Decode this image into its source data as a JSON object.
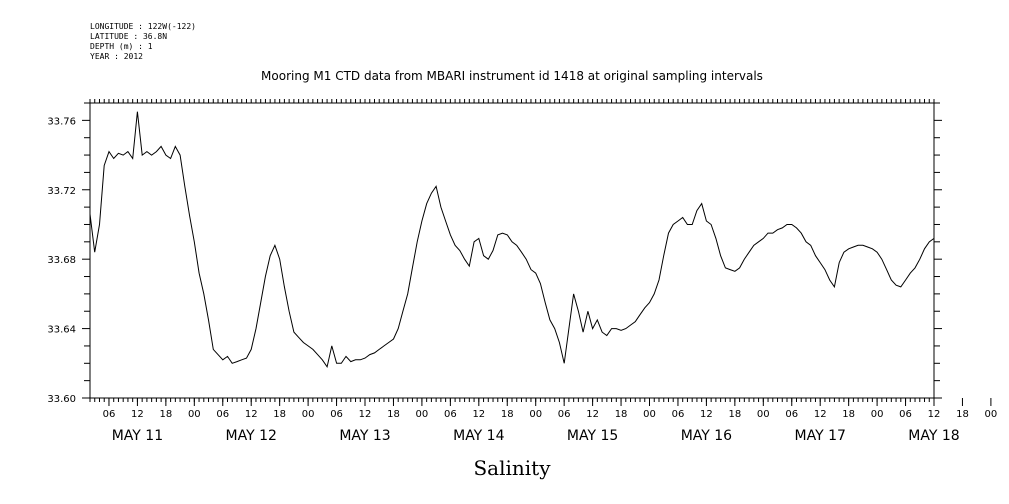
{
  "header": {
    "longitude": "LONGITUDE : 122W(-122)",
    "latitude": "LATITUDE : 36.8N",
    "depth": "DEPTH (m) : 1",
    "year": "YEAR : 2012"
  },
  "chart_data": {
    "type": "line",
    "title": "Mooring M1 CTD data from MBARI instrument id 1418 at original sampling intervals",
    "xlabel": "Salinity",
    "ylabel": "",
    "ylim": [
      33.6,
      33.77
    ],
    "yticks": [
      "33.60",
      "33.64",
      "33.68",
      "33.72",
      "33.76"
    ],
    "xlim_hours": [
      2,
      180
    ],
    "hour_ticks": [
      "06",
      "12",
      "18",
      "00",
      "06",
      "12",
      "18",
      "00",
      "06",
      "12",
      "18",
      "00",
      "06",
      "12",
      "18",
      "00",
      "06",
      "12",
      "18",
      "00",
      "06",
      "12",
      "18",
      "00",
      "06",
      "12",
      "18",
      "00",
      "06",
      "12",
      "18",
      "00"
    ],
    "day_labels": [
      "MAY 11",
      "MAY 12",
      "MAY 13",
      "MAY 14",
      "MAY 15",
      "MAY 16",
      "MAY 17",
      "MAY 18"
    ],
    "series": [
      {
        "x_hours": [
          2,
          3,
          4,
          5,
          6,
          7,
          8,
          9,
          10,
          11,
          12,
          13,
          14,
          15,
          16,
          17,
          18,
          19,
          20,
          21,
          22,
          23,
          24,
          25,
          26,
          27,
          28,
          29,
          30,
          31,
          32,
          33,
          34,
          35,
          36,
          37,
          38,
          39,
          40,
          41,
          42,
          43,
          44,
          45,
          46,
          47,
          48,
          49,
          50,
          51,
          52,
          53,
          54,
          55,
          56,
          57,
          58,
          59,
          60,
          61,
          62,
          63,
          64,
          65,
          66,
          67,
          68,
          69,
          70,
          71,
          72,
          73,
          74,
          75,
          76,
          77,
          78,
          79,
          80,
          81,
          82,
          83,
          84,
          85,
          86,
          87,
          88,
          89,
          90,
          91,
          92,
          93,
          94,
          95,
          96,
          97,
          98,
          99,
          100,
          101,
          102,
          103,
          104,
          105,
          106,
          107,
          108,
          109,
          110,
          111,
          112,
          113,
          114,
          115,
          116,
          117,
          118,
          119,
          120,
          121,
          122,
          123,
          124,
          125,
          126,
          127,
          128,
          129,
          130,
          131,
          132,
          133,
          134,
          135,
          136,
          137,
          138,
          139,
          140,
          141,
          142,
          143,
          144,
          145,
          146,
          147,
          148,
          149,
          150,
          151,
          152,
          153,
          154,
          155,
          156,
          157,
          158,
          159,
          160,
          161,
          162,
          163,
          164,
          165,
          166,
          167,
          168,
          169,
          170,
          171,
          172,
          173,
          174,
          175,
          176,
          177,
          178,
          179,
          180
        ],
        "values": [
          33.706,
          33.684,
          33.7,
          33.734,
          33.742,
          33.738,
          33.741,
          33.74,
          33.742,
          33.738,
          33.765,
          33.74,
          33.742,
          33.74,
          33.742,
          33.745,
          33.74,
          33.738,
          33.745,
          33.74,
          33.722,
          33.705,
          33.69,
          33.672,
          33.66,
          33.645,
          33.628,
          33.625,
          33.622,
          33.624,
          33.62,
          33.621,
          33.622,
          33.623,
          33.628,
          33.64,
          33.655,
          33.67,
          33.682,
          33.688,
          33.68,
          33.664,
          33.65,
          33.638,
          33.635,
          33.632,
          33.63,
          33.628,
          33.625,
          33.622,
          33.618,
          33.63,
          33.62,
          33.62,
          33.624,
          33.621,
          33.622,
          33.622,
          33.623,
          33.625,
          33.626,
          33.628,
          33.63,
          33.632,
          33.634,
          33.64,
          33.65,
          33.66,
          33.675,
          33.69,
          33.702,
          33.712,
          33.718,
          33.722,
          33.71,
          33.702,
          33.694,
          33.688,
          33.685,
          33.68,
          33.676,
          33.69,
          33.692,
          33.682,
          33.68,
          33.685,
          33.694,
          33.695,
          33.694,
          33.69,
          33.688,
          33.684,
          33.68,
          33.674,
          33.672,
          33.666,
          33.655,
          33.645,
          33.64,
          33.632,
          33.62,
          33.64,
          33.66,
          33.65,
          33.638,
          33.65,
          33.64,
          33.645,
          33.638,
          33.636,
          33.64,
          33.64,
          33.639,
          33.64,
          33.642,
          33.644,
          33.648,
          33.652,
          33.655,
          33.66,
          33.668,
          33.682,
          33.695,
          33.7,
          33.702,
          33.704,
          33.7,
          33.7,
          33.708,
          33.712,
          33.702,
          33.7,
          33.692,
          33.682,
          33.675,
          33.674,
          33.673,
          33.675,
          33.68,
          33.684,
          33.688,
          33.69,
          33.692,
          33.695,
          33.695,
          33.697,
          33.698,
          33.7,
          33.7,
          33.698,
          33.695,
          33.69,
          33.688,
          33.682,
          33.678,
          33.674,
          33.668,
          33.664,
          33.678,
          33.684,
          33.686,
          33.687,
          33.688,
          33.688,
          33.687,
          33.686,
          33.684,
          33.68,
          33.674,
          33.668,
          33.665,
          33.664,
          33.668,
          33.672,
          33.675,
          33.68,
          33.686,
          33.69,
          33.692
        ]
      }
    ]
  }
}
